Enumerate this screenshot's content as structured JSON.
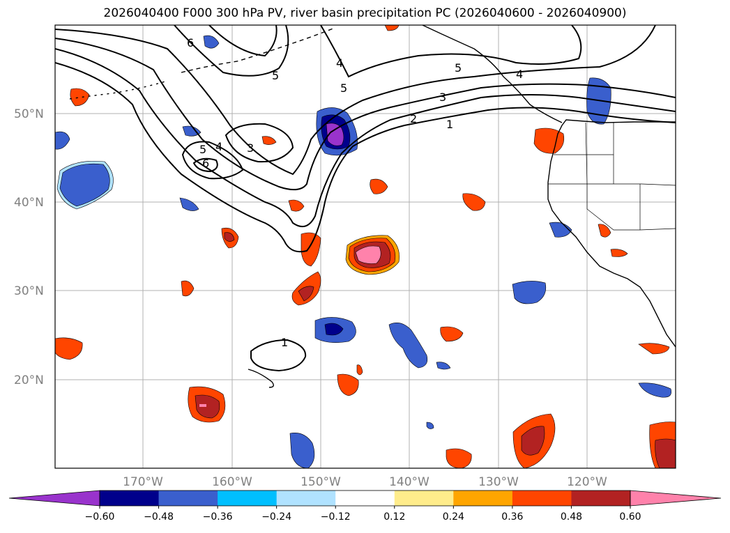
{
  "title": "2026040400 F000 300 hPa PV, river basin precipitation PC (2026040600 - 2026040900)",
  "colors": {
    "grid": "#b0b0b0",
    "coast": "#000000",
    "contour": "#000000",
    "bins": [
      "#9933cc",
      "#00008b",
      "#3a5fcd",
      "#00bfff",
      "#b0e2ff",
      "#ffffff",
      "#ffec8b",
      "#ffa500",
      "#ff4500",
      "#b22222",
      "#ff82ab"
    ]
  },
  "latitudes": [
    "50°N",
    "40°N",
    "30°N",
    "20°N"
  ],
  "longitudes": [
    "170°W",
    "160°W",
    "150°W",
    "140°W",
    "130°W",
    "120°W"
  ],
  "colorbar": {
    "ticks": [
      "−0.60",
      "−0.48",
      "−0.36",
      "−0.24",
      "−0.12",
      "0.12",
      "0.24",
      "0.36",
      "0.48",
      "0.60"
    ]
  },
  "contour_labels": [
    "6",
    "5",
    "4",
    "5",
    "5",
    "4",
    "3",
    "2",
    "1",
    "5",
    "4",
    "3",
    "6",
    "1"
  ]
}
